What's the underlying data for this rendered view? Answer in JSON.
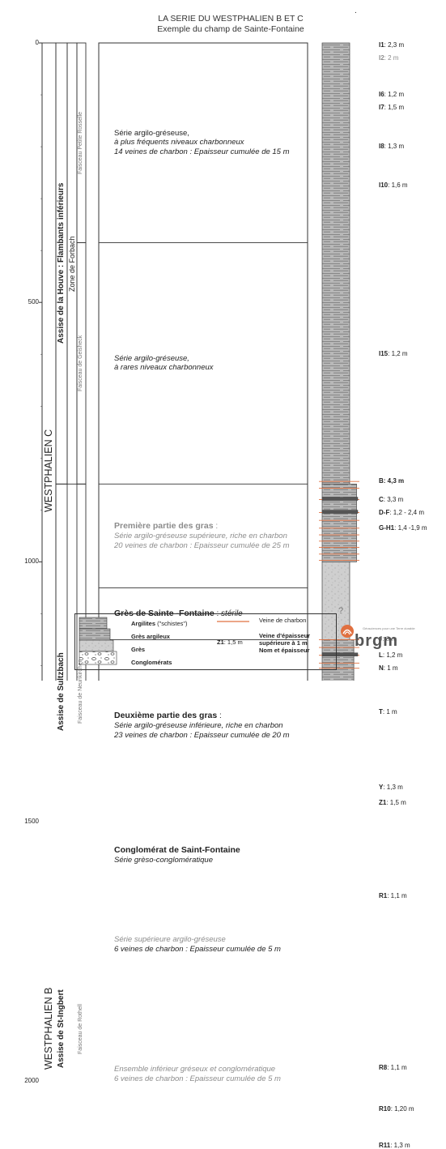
{
  "header": {
    "title": "LA SERIE  DU WESTPHALIEN B ET C",
    "subtitle": "Exemple du champ de Sainte-Fontaine",
    "top_dot": "."
  },
  "depth_axis": {
    "ticks": [
      "0",
      "500",
      "1000",
      "1500",
      "2000"
    ],
    "range": [
      0,
      2200
    ]
  },
  "stratigraphy": {
    "stages": [
      {
        "label": "WESTPHALIEN C",
        "from": 0,
        "to": 1650
      },
      {
        "label": "WESTPHALIEN B",
        "from": 1650,
        "to": 2150
      }
    ],
    "assises": [
      {
        "label": "Assise de la Houve : Flambants inférieurs",
        "from": 0,
        "to": 850
      },
      {
        "label": "Assise de Sultzbach",
        "from": 850,
        "to": 1650
      },
      {
        "label": "Assise de St-Ingbert",
        "from": 1650,
        "to": 2150
      }
    ],
    "zones": [
      {
        "label": "Zone de Forbach",
        "from": 0,
        "to": 850
      }
    ],
    "faisceaux": [
      {
        "label": "Faisceau Petite Rosselle",
        "from": 0,
        "to": 385
      },
      {
        "label": "Faisceau de Geisheck",
        "from": 385,
        "to": 850
      },
      {
        "label": "Faisceau de Neunkirchen",
        "from": 850,
        "to": 1650
      },
      {
        "label": "Faisceau de Rothell",
        "from": 1650,
        "to": 2150
      }
    ]
  },
  "descriptions": [
    {
      "lines": [
        {
          "text": "Série argilo-gréseuse,",
          "style": ""
        },
        {
          "text": "à plus fréquents  niveaux charbonneux",
          "style": "it"
        },
        {
          "text": "14 veines de charbon : Epaisseur cumulée de 15 m",
          "style": "it"
        }
      ]
    },
    {
      "lines": [
        {
          "text": "Série argilo-gréseuse,",
          "style": "it"
        },
        {
          "text": "à rares niveaux charbonneux",
          "style": "it"
        }
      ]
    },
    {
      "lines": [
        {
          "text": "Première partie des gras",
          "style": "hd gray",
          "suffix": " :"
        },
        {
          "text": "Série argilo-gréseuse supérieure, riche en charbon",
          "style": "it gray"
        },
        {
          "text": "20 veines de charbon : Epaisseur cumulée de 25 m",
          "style": "it gray"
        }
      ]
    },
    {
      "lines": [
        {
          "text": "Grès de Sainte -Fontaine",
          "style": "hd",
          "suffix": " : ",
          "tail": "stérile"
        }
      ]
    },
    {
      "lines": [
        {
          "text": "Deuxième partie des gras",
          "style": "hd",
          "suffix": " :"
        },
        {
          "text": "Série argilo-gréseuse inférieure, riche en charbon",
          "style": "it"
        },
        {
          "text": "23 veines de charbon : Epaisseur cumulée de 20 m",
          "style": "it"
        }
      ]
    },
    {
      "lines": [
        {
          "text": "Conglomérat de Saint-Fontaine",
          "style": "hd"
        },
        {
          "text": "Série grèso-conglomératique",
          "style": "it"
        }
      ]
    },
    {
      "lines": [
        {
          "text": "Série supérieure argilo-gréseuse",
          "style": "it gray"
        },
        {
          "text": "6 veines de charbon : Epaisseur cumulée de 5 m",
          "style": "it"
        }
      ]
    },
    {
      "lines": [
        {
          "text": "Ensemble inférieur gréseux et conglomératique",
          "style": "it gray"
        },
        {
          "text": "6 veines de charbon : Epaisseur cumulée de 5 m",
          "style": "it gray"
        }
      ]
    }
  ],
  "beds": [
    {
      "name": "I1",
      "thick": ": 2,3 m",
      "depth": 5,
      "gray": false
    },
    {
      "name": "I2",
      "thick": ": 2 m",
      "depth": 30,
      "gray": true
    },
    {
      "name": "I6",
      "thick": ": 1,2 m",
      "depth": 100,
      "gray": false
    },
    {
      "name": "I7",
      "thick": ": 1,5 m",
      "depth": 125,
      "gray": false
    },
    {
      "name": "I8",
      "thick": ": 1,3 m",
      "depth": 200,
      "gray": false
    },
    {
      "name": "I10",
      "thick": ": 1,6 m",
      "depth": 275,
      "gray": false
    },
    {
      "name": "I15",
      "thick": ": 1,2 m",
      "depth": 600,
      "gray": false
    },
    {
      "name": "B",
      "thick": ": 4,3 m",
      "depth": 845,
      "gray": false,
      "boldval": true
    },
    {
      "name": "C",
      "thick": ": 3,3 m",
      "depth": 880,
      "gray": false
    },
    {
      "name": "D-F",
      "thick": ": 1,2 - 2,4 m",
      "depth": 905,
      "gray": false
    },
    {
      "name": "G-H1",
      "thick": ": 1,4 -1,9 m",
      "depth": 935,
      "gray": false
    },
    {
      "name": "J",
      "thick": ": 3 m",
      "depth": 1150,
      "gray": true
    },
    {
      "name": "L",
      "thick": ": 1,2 m",
      "depth": 1180,
      "gray": false
    },
    {
      "name": "N",
      "thick": ": 1 m",
      "depth": 1205,
      "gray": false
    },
    {
      "name": "T",
      "thick": ": 1 m",
      "depth": 1290,
      "gray": false
    },
    {
      "name": "Y",
      "thick": ": 1,3 m",
      "depth": 1435,
      "gray": false
    },
    {
      "name": "Z1",
      "thick": ": 1,5 m",
      "depth": 1465,
      "gray": false
    },
    {
      "name": "R1",
      "thick": ": 1,1 m",
      "depth": 1645,
      "gray": false
    },
    {
      "name": "R8",
      "thick": ": 1,1 m",
      "depth": 1975,
      "gray": false
    },
    {
      "name": "R10",
      "thick": ": 1,20 m",
      "depth": 2055,
      "gray": false
    },
    {
      "name": "R11",
      "thick": ": 1,3 m",
      "depth": 2125,
      "gray": false
    }
  ],
  "column_bottom_mark": "?",
  "legend": {
    "lithologies": [
      "Argilites",
      "(\"schistes\")",
      "Grès argileux",
      "Grès",
      "Conglomérats"
    ],
    "coal_vein": "Veine de charbon",
    "example_bed": {
      "name": "Z1",
      "thick": ": 1,5 m"
    },
    "explanation": [
      "Veine d'épaisseur",
      "supérieure à 1 m",
      "Nom et épaisseur"
    ]
  },
  "logo": {
    "name": "brgm",
    "tagline": "Géosciences pour une Terre durable"
  },
  "colors": {
    "coal_red": "#e07040",
    "clay_gray": "#9a9a9a",
    "sand_gray": "#c4c4c4"
  }
}
